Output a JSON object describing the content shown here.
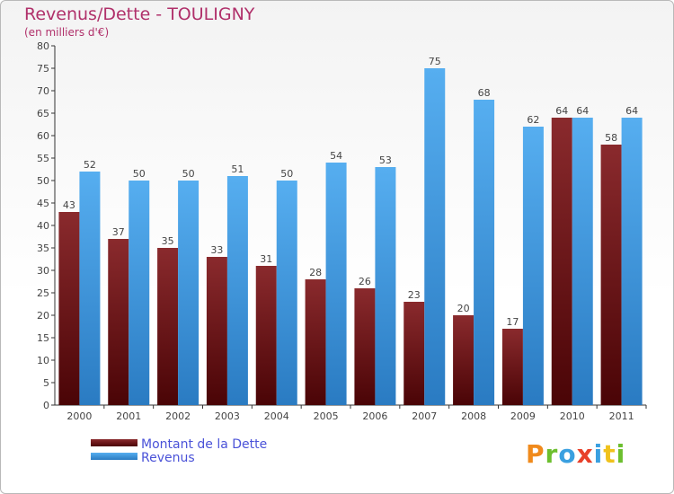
{
  "colors": {
    "dette": "#7a1f22",
    "dette_dark": "#4a0b0d",
    "revenus": "#4aa3e6",
    "revenus_dark": "#2f7fc4",
    "title": "#b0306a",
    "legend_text": "#4a52d8"
  },
  "brand": {
    "text": "Proxiti",
    "letter_colors": [
      "#f08a1c",
      "#6cbf2e",
      "#3aa0e0",
      "#e8402a",
      "#3aa0e0",
      "#f0c21c",
      "#6cbf2e"
    ]
  },
  "chart_data": {
    "type": "bar",
    "title": "Revenus/Dette - TOULIGNY",
    "subtitle": "(en milliers d'€)",
    "xlabel": "",
    "ylabel": "",
    "ylim": [
      0,
      80
    ],
    "yticks": [
      0,
      5,
      10,
      15,
      20,
      25,
      30,
      35,
      40,
      45,
      50,
      55,
      60,
      65,
      70,
      75,
      80
    ],
    "grid": false,
    "legend_position": "bottom-left",
    "categories": [
      "2000",
      "2001",
      "2002",
      "2003",
      "2004",
      "2005",
      "2006",
      "2007",
      "2008",
      "2009",
      "2010",
      "2011"
    ],
    "series": [
      {
        "name": "Montant de la Dette",
        "values": [
          43,
          37,
          35,
          33,
          31,
          28,
          26,
          23,
          20,
          17,
          64,
          58
        ]
      },
      {
        "name": "Revenus",
        "values": [
          52,
          50,
          50,
          51,
          50,
          54,
          53,
          75,
          68,
          62,
          64,
          64
        ]
      }
    ]
  }
}
